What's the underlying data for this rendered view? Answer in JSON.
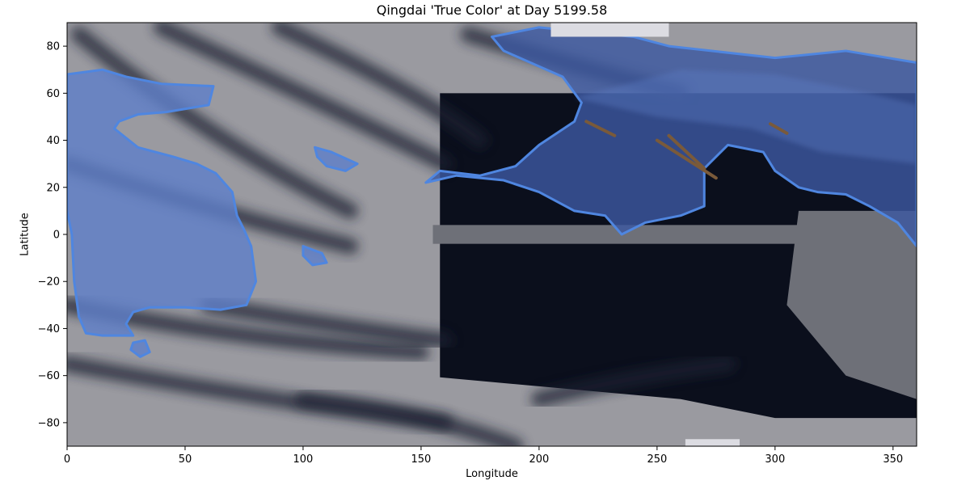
{
  "chart_data": {
    "type": "heatmap",
    "title": "Qingdai 'True Color' at Day 5199.58",
    "xlabel": "Longitude",
    "ylabel": "Latitude",
    "xlim": [
      0,
      360
    ],
    "ylim": [
      -90,
      90
    ],
    "xticks": [
      0,
      50,
      100,
      150,
      200,
      250,
      300,
      350
    ],
    "yticks": [
      -80,
      -60,
      -40,
      -20,
      0,
      20,
      40,
      60,
      80
    ],
    "grid": false,
    "colors": {
      "ocean_dark": "#0b0f1c",
      "cloud_gray": "#9a9aa0",
      "cloud_mid": "#6e7078",
      "land_blue": "#5f7fc8",
      "land_deep": "#3c58a0",
      "coast_outline": "#4f86e0",
      "ice_white": "#dcdce2",
      "desert_brown": "#7a5a3a"
    },
    "regions": [
      {
        "name": "western continent",
        "polygon": [
          [
            0,
            68
          ],
          [
            15,
            70
          ],
          [
            25,
            67
          ],
          [
            40,
            64
          ],
          [
            62,
            63
          ],
          [
            60,
            55
          ],
          [
            42,
            52
          ],
          [
            30,
            51
          ],
          [
            22,
            48
          ],
          [
            20,
            45
          ],
          [
            30,
            37
          ],
          [
            45,
            33
          ],
          [
            55,
            30
          ],
          [
            63,
            26
          ],
          [
            70,
            18
          ],
          [
            72,
            8
          ],
          [
            75,
            2
          ],
          [
            78,
            -5
          ],
          [
            80,
            -20
          ],
          [
            76,
            -30
          ],
          [
            65,
            -32
          ],
          [
            50,
            -31
          ],
          [
            35,
            -31
          ],
          [
            28,
            -33
          ],
          [
            25,
            -38
          ],
          [
            28,
            -43
          ],
          [
            15,
            -43
          ],
          [
            8,
            -42
          ],
          [
            5,
            -35
          ],
          [
            3,
            -20
          ],
          [
            2,
            0
          ],
          [
            0,
            10
          ]
        ]
      },
      {
        "name": "small island 1",
        "polygon": [
          [
            105,
            37
          ],
          [
            112,
            35
          ],
          [
            123,
            30
          ],
          [
            118,
            27
          ],
          [
            110,
            29
          ],
          [
            106,
            33
          ]
        ]
      },
      {
        "name": "small island 2",
        "polygon": [
          [
            100,
            -5
          ],
          [
            108,
            -8
          ],
          [
            110,
            -12
          ],
          [
            104,
            -13
          ],
          [
            100,
            -9
          ]
        ]
      },
      {
        "name": "southern island",
        "polygon": [
          [
            28,
            -46
          ],
          [
            33,
            -45
          ],
          [
            35,
            -50
          ],
          [
            31,
            -52
          ],
          [
            27,
            -49
          ]
        ]
      },
      {
        "name": "eastern continent",
        "polygon": [
          [
            175,
            25
          ],
          [
            190,
            29
          ],
          [
            200,
            38
          ],
          [
            215,
            48
          ],
          [
            218,
            56
          ],
          [
            210,
            67
          ],
          [
            185,
            78
          ],
          [
            180,
            84
          ],
          [
            200,
            88
          ],
          [
            240,
            84
          ],
          [
            255,
            80
          ],
          [
            300,
            75
          ],
          [
            330,
            78
          ],
          [
            360,
            73
          ],
          [
            360,
            -5
          ],
          [
            352,
            5
          ],
          [
            340,
            12
          ],
          [
            330,
            17
          ],
          [
            318,
            18
          ],
          [
            310,
            20
          ],
          [
            300,
            27
          ],
          [
            295,
            35
          ],
          [
            280,
            38
          ],
          [
            270,
            28
          ],
          [
            270,
            12
          ],
          [
            260,
            8
          ],
          [
            245,
            5
          ],
          [
            235,
            0
          ],
          [
            228,
            8
          ],
          [
            215,
            10
          ],
          [
            200,
            18
          ],
          [
            185,
            23
          ],
          [
            165,
            25
          ],
          [
            152,
            22
          ],
          [
            158,
            27
          ]
        ]
      }
    ],
    "ice_caps": [
      {
        "name": "north cap",
        "lon": [
          205,
          255
        ],
        "lat": [
          84,
          90
        ]
      },
      {
        "name": "south cap",
        "lon": [
          262,
          285
        ],
        "lat": [
          -90,
          -87
        ]
      }
    ],
    "desert_streaks": [
      {
        "from": [
          220,
          48
        ],
        "to": [
          232,
          42
        ]
      },
      {
        "from": [
          250,
          40
        ],
        "to": [
          275,
          24
        ]
      },
      {
        "from": [
          255,
          42
        ],
        "to": [
          270,
          28
        ]
      },
      {
        "from": [
          298,
          47
        ],
        "to": [
          305,
          43
        ]
      }
    ]
  }
}
